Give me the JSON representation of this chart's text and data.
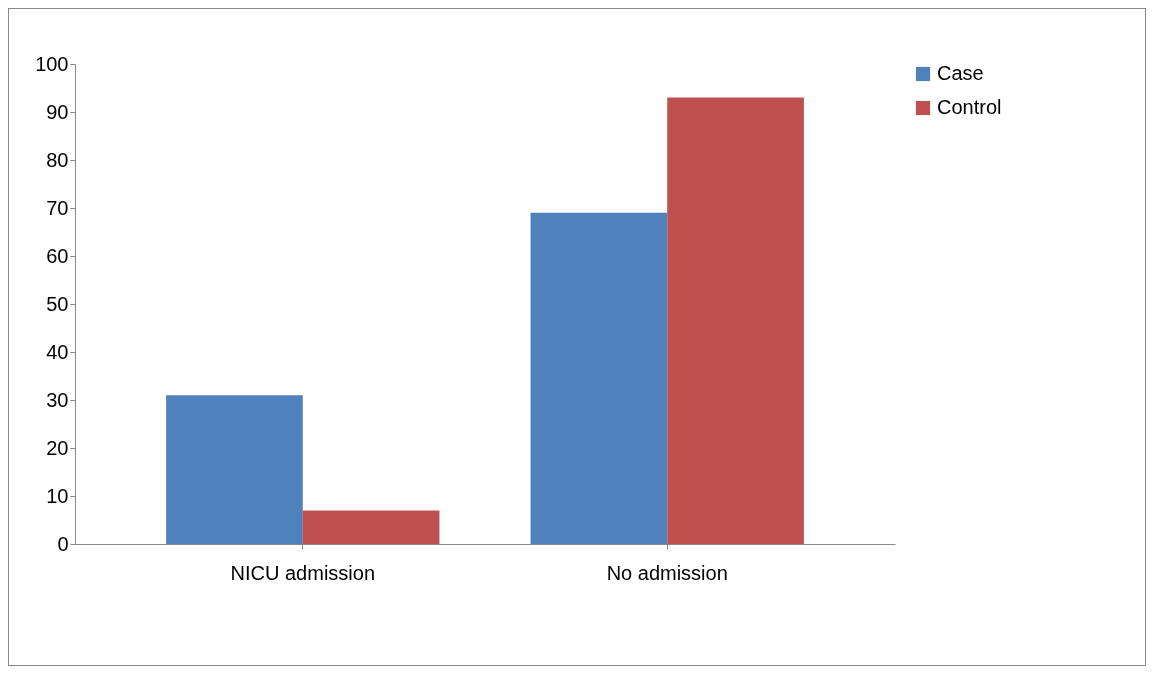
{
  "chart_data": {
    "type": "bar",
    "categories": [
      "NICU admission",
      "No admission"
    ],
    "series": [
      {
        "name": "Case",
        "color": "#4f81bd",
        "values": [
          31,
          69
        ]
      },
      {
        "name": "Control",
        "color": "#c0504d",
        "values": [
          7,
          93
        ]
      }
    ],
    "ylim": [
      0,
      100
    ],
    "yticks": [
      0,
      10,
      20,
      30,
      40,
      50,
      60,
      70,
      80,
      90,
      100
    ],
    "grid": false,
    "legend": "right"
  }
}
